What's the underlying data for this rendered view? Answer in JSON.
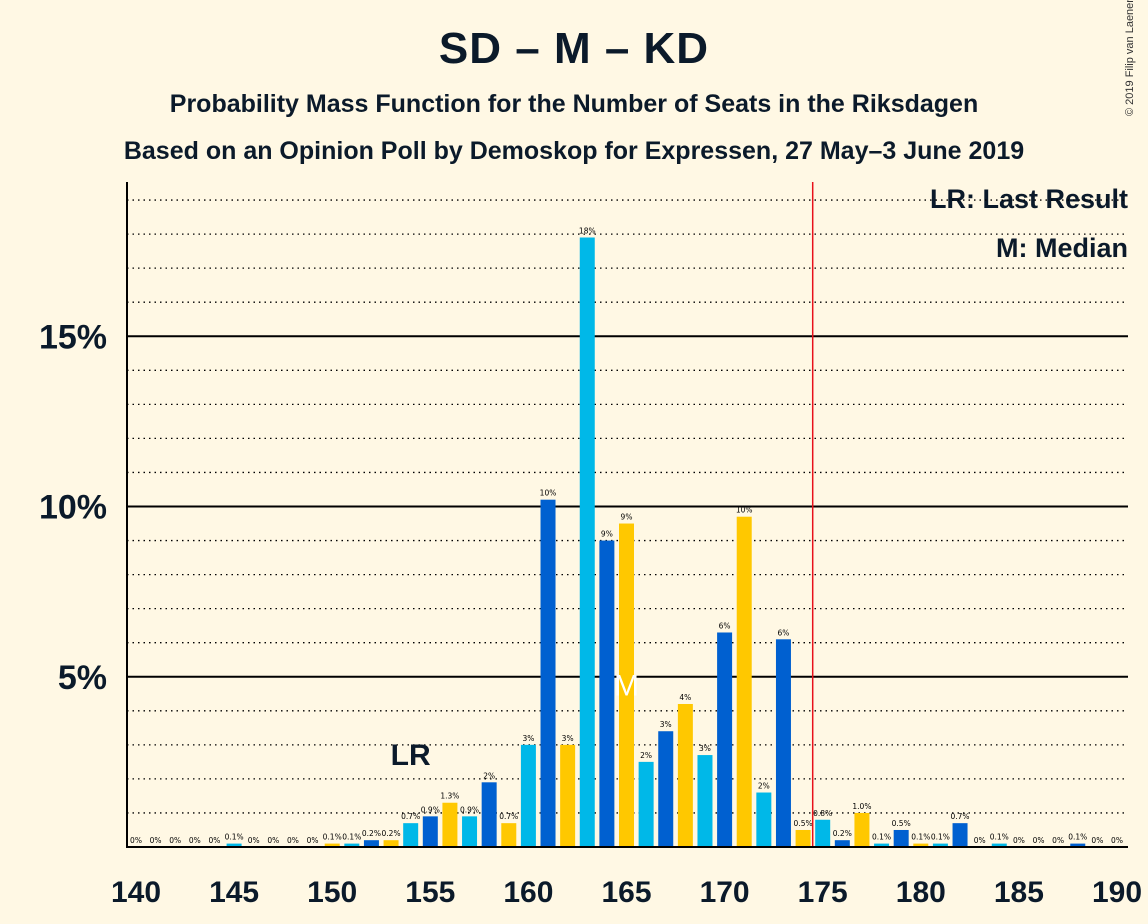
{
  "title": "SD – M – KD",
  "subtitle": "Probability Mass Function for the Number of Seats in the Riksdagen",
  "subtitle2": "Based on an Opinion Poll by Demoskop for Expressen, 27 May–3 June 2019",
  "copyright": "© 2019 Filip van Laenen",
  "legend": {
    "lr": "LR: Last Result",
    "median": "M: Median"
  },
  "colors": {
    "background": "#fff8e4",
    "blue_light": "#00b8e8",
    "blue_dark": "#0060d0",
    "yellow": "#ffc800",
    "majority_line": "#e8101a",
    "text": "#0b1a2a"
  },
  "chart_data": {
    "type": "bar",
    "x": [
      140,
      141,
      142,
      143,
      144,
      145,
      146,
      147,
      148,
      149,
      150,
      151,
      152,
      153,
      154,
      155,
      156,
      157,
      158,
      159,
      160,
      161,
      162,
      163,
      164,
      165,
      166,
      167,
      168,
      169,
      170,
      171,
      172,
      173,
      174,
      175,
      176,
      177,
      178,
      179,
      180,
      181,
      182,
      183,
      184,
      185,
      186,
      187,
      188,
      189,
      190
    ],
    "values": [
      0,
      0,
      0,
      0,
      0,
      0.1,
      0,
      0,
      0,
      0,
      0.1,
      0.1,
      0.2,
      0.2,
      0.7,
      0.9,
      1.3,
      0.9,
      1.9,
      0.7,
      3.0,
      10.2,
      3.0,
      17.9,
      9.0,
      9.5,
      2.5,
      3.4,
      4.2,
      2.7,
      6.3,
      9.7,
      1.6,
      6.1,
      0.5,
      0.8,
      0.2,
      1.0,
      0.1,
      0.5,
      0.1,
      0.1,
      0.7,
      0,
      0.1,
      0,
      0,
      0,
      0.1,
      0,
      0
    ],
    "labels": [
      "0%",
      "0%",
      "0%",
      "0%",
      "0%",
      "0.1%",
      "0%",
      "0%",
      "0%",
      "0%",
      "0.1%",
      "0.1%",
      "0.2%",
      "0.2%",
      "0.7%",
      "0.9%",
      "1.3%",
      "0.9%",
      "2%",
      "0.7%",
      "3%",
      "10%",
      "3%",
      "18%",
      "9%",
      "9%",
      "2%",
      "3%",
      "4%",
      "3%",
      "6%",
      "10%",
      "2%",
      "6%",
      "0.5%",
      "0.8%",
      "0.2%",
      "1.0%",
      "0.1%",
      "0.5%",
      "0.1%",
      "0.1%",
      "0.7%",
      "0%",
      "0.1%",
      "0%",
      "0%",
      "0%",
      "0.1%",
      "0%",
      "0%"
    ],
    "xlim": [
      140,
      190
    ],
    "ylim": [
      0,
      19.5
    ],
    "x_ticks": [
      140,
      145,
      150,
      155,
      160,
      165,
      170,
      175,
      180,
      185,
      190
    ],
    "y_ticks": [
      5,
      10,
      15
    ],
    "y_tick_labels": [
      "5%",
      "10%",
      "15%"
    ],
    "minor_gridlines_every": 1,
    "last_result": {
      "seat": 154,
      "label": "LR"
    },
    "median": {
      "seat": 165,
      "label": "M"
    },
    "majority_line": 175
  }
}
